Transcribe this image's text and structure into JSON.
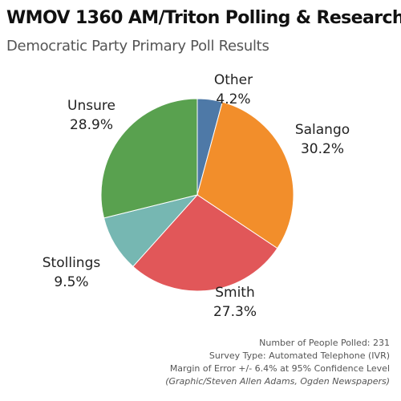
{
  "chart_data": {
    "type": "pie",
    "title": "WMOV 1360 AM/Triton Polling & Research",
    "subtitle": "Democratic Party Primary Poll Results",
    "slices": [
      {
        "name": "Other",
        "value": 4.2,
        "label": "4.2%",
        "color": "#4e79a7"
      },
      {
        "name": "Salango",
        "value": 30.2,
        "label": "30.2%",
        "color": "#f28e2b"
      },
      {
        "name": "Smith",
        "value": 27.3,
        "label": "27.3%",
        "color": "#e15759"
      },
      {
        "name": "Stollings",
        "value": 9.5,
        "label": "9.5%",
        "color": "#76b7b2"
      },
      {
        "name": "Unsure",
        "value": 28.9,
        "label": "28.9%",
        "color": "#59a14f"
      }
    ],
    "legend": "none"
  },
  "footer": {
    "polled": "Number of People Polled: 231",
    "survey_type": "Survey Type: Automated Telephone (IVR)",
    "margin": "Margin of Error +/- 6.4% at 95% Confidence Level",
    "credit": "(Graphic/Steven Allen Adams, Ogden Newspapers)"
  }
}
